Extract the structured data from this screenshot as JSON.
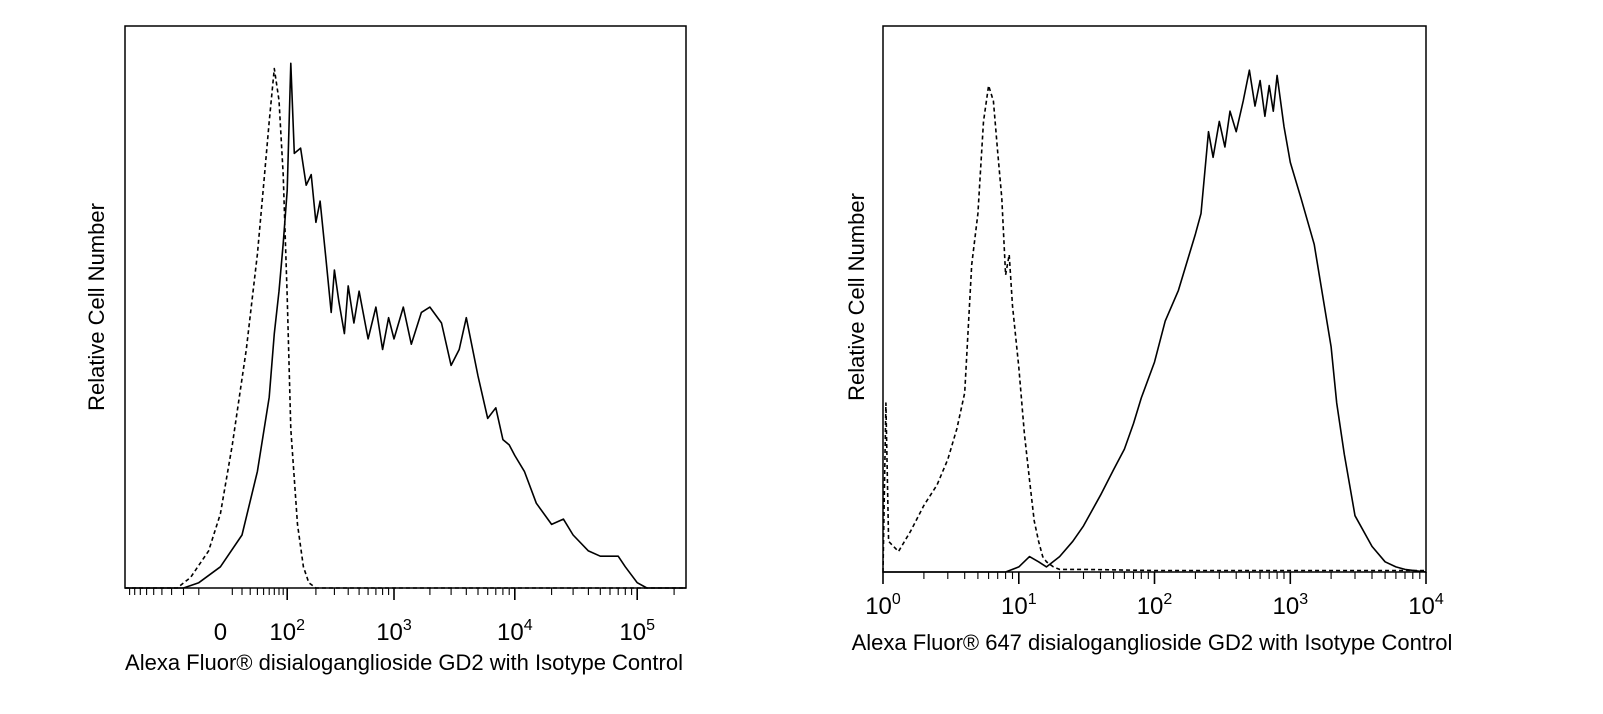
{
  "colors": {
    "line": "#000000",
    "background": "#ffffff"
  },
  "chart_data": [
    {
      "type": "line",
      "title": "",
      "xlabel": "Alexa Fluor® disialoganglioside GD2 with Isotype Control",
      "ylabel": "Relative Cell Number",
      "x_scale": "biexponential",
      "xlim": [
        -200,
        250000
      ],
      "ylim": [
        0,
        100
      ],
      "grid": false,
      "legend": "none",
      "x_ticks": [
        {
          "value": 0,
          "base": "0",
          "exp": ""
        },
        {
          "value": 100,
          "base": "10",
          "exp": "2"
        },
        {
          "value": 1000,
          "base": "10",
          "exp": "3"
        },
        {
          "value": 10000,
          "base": "10",
          "exp": "4"
        },
        {
          "value": 100000,
          "base": "10",
          "exp": "5"
        }
      ],
      "series": [
        {
          "style": "dashed",
          "x": [
            -200,
            -50,
            -30,
            -10,
            0,
            10,
            25,
            40,
            50,
            60,
            70,
            80,
            90,
            100,
            110,
            130,
            150,
            170,
            200,
            300,
            1000,
            10000,
            100000,
            250000
          ],
          "y": [
            0,
            0,
            2,
            7,
            14,
            27,
            45,
            63,
            76,
            88,
            98,
            92,
            78,
            55,
            30,
            12,
            4,
            1,
            0,
            0,
            0,
            0,
            0,
            0
          ]
        },
        {
          "style": "solid",
          "x": [
            -200,
            -40,
            -20,
            0,
            20,
            40,
            60,
            70,
            80,
            90,
            100,
            110,
            120,
            140,
            160,
            180,
            200,
            220,
            250,
            280,
            300,
            330,
            370,
            400,
            450,
            500,
            600,
            700,
            800,
            900,
            1000,
            1200,
            1400,
            1700,
            2000,
            2500,
            3000,
            3500,
            4000,
            5000,
            6000,
            7000,
            8000,
            9000,
            10000,
            12000,
            15000,
            20000,
            25000,
            30000,
            40000,
            50000,
            60000,
            70000,
            80000,
            100000,
            120000,
            250000
          ],
          "y": [
            0,
            0,
            1,
            4,
            10,
            22,
            36,
            48,
            56,
            65,
            75,
            99,
            82,
            83,
            76,
            78,
            69,
            73,
            62,
            52,
            60,
            54,
            48,
            57,
            50,
            56,
            47,
            53,
            45,
            51,
            47,
            53,
            46,
            52,
            53,
            50,
            42,
            45,
            51,
            40,
            32,
            34,
            28,
            27,
            25,
            22,
            16,
            12,
            13,
            10,
            7,
            6,
            6,
            6,
            4,
            1,
            0,
            0
          ]
        }
      ]
    },
    {
      "type": "line",
      "title": "",
      "xlabel": "Alexa Fluor® 647 disialoganglioside GD2 with Isotype Control",
      "ylabel": "Relative Cell Number",
      "x_scale": "log",
      "xlim": [
        1,
        10000
      ],
      "ylim": [
        0,
        100
      ],
      "grid": false,
      "legend": "none",
      "x_ticks": [
        {
          "value": 1,
          "base": "10",
          "exp": "0"
        },
        {
          "value": 10,
          "base": "10",
          "exp": "1"
        },
        {
          "value": 100,
          "base": "10",
          "exp": "2"
        },
        {
          "value": 1000,
          "base": "10",
          "exp": "3"
        },
        {
          "value": 10000,
          "base": "10",
          "exp": "4"
        }
      ],
      "series": [
        {
          "style": "dashed",
          "x": [
            1.0,
            1.05,
            1.1,
            1.3,
            1.6,
            2.0,
            2.5,
            3.0,
            3.5,
            4.0,
            4.5,
            5.0,
            5.5,
            6.0,
            6.5,
            7.0,
            7.5,
            8.0,
            8.5,
            9.0,
            10,
            11,
            12,
            13,
            14,
            15,
            16,
            18,
            20,
            30,
            100,
            1000,
            10000
          ],
          "y": [
            0,
            33,
            6,
            4,
            8,
            13,
            17,
            22,
            28,
            35,
            60,
            70,
            88,
            95,
            92,
            82,
            73,
            58,
            62,
            52,
            40,
            27,
            18,
            10,
            6,
            3,
            2,
            1,
            0.5,
            0.5,
            0.3,
            0.3,
            0.3
          ]
        },
        {
          "style": "solid",
          "x": [
            1,
            8,
            10,
            12,
            14,
            16,
            20,
            25,
            30,
            40,
            50,
            60,
            70,
            80,
            100,
            120,
            150,
            180,
            200,
            220,
            250,
            270,
            300,
            330,
            360,
            400,
            450,
            500,
            550,
            600,
            650,
            700,
            750,
            800,
            900,
            1000,
            1200,
            1500,
            2000,
            2200,
            2500,
            3000,
            4000,
            5000,
            6000,
            7000,
            10000
          ],
          "y": [
            0,
            0,
            1,
            3,
            2,
            1,
            3,
            6,
            9,
            15,
            20,
            24,
            29,
            34,
            41,
            49,
            55,
            62,
            66,
            70,
            86,
            81,
            88,
            83,
            90,
            86,
            92,
            98,
            91,
            96,
            89,
            95,
            90,
            97,
            87,
            80,
            73,
            64,
            44,
            33,
            23,
            11,
            5,
            2,
            1,
            0.5,
            0
          ]
        }
      ]
    }
  ]
}
